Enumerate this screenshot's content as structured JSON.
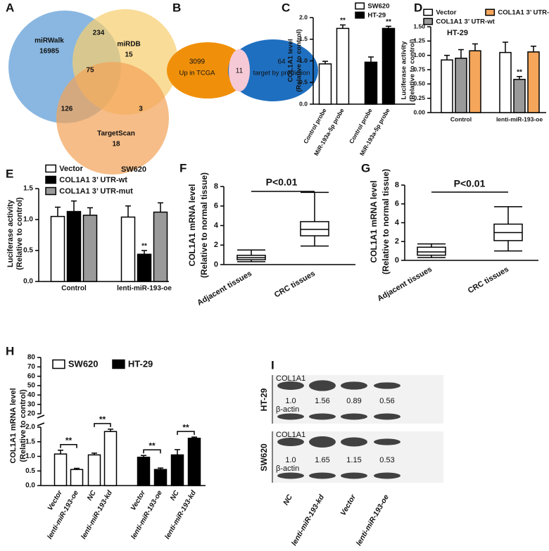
{
  "chart_data": [
    {
      "type": "venn",
      "panel": "A",
      "sets": [
        {
          "name": "miRWalk",
          "color": "#5b9bd5"
        },
        {
          "name": "miRDB",
          "color": "#f7cf70"
        },
        {
          "name": "TargetScan",
          "color": "#f2a45a"
        }
      ],
      "values": [
        16985,
        15,
        18,
        234,
        75,
        126,
        3
      ]
    },
    {
      "type": "venn",
      "panel": "B",
      "sets": [
        {
          "name": "Up in TCGA",
          "color": "#f0900a"
        },
        {
          "name": "target by prediction",
          "color": "#1f6fc0"
        }
      ],
      "values": [
        3099,
        64,
        11
      ]
    },
    {
      "type": "bar",
      "panel": "C",
      "ylabel": [
        "COL1A1 level",
        "(Relative to control)"
      ],
      "categories": [
        "Control probe",
        "MiR-193a-5p probe",
        "Control probe",
        "MiR-193a-5p probe"
      ],
      "series": [
        {
          "name": "SW620",
          "color": "#ffffff",
          "values": [
            0.93,
            1.75,
            null,
            null
          ],
          "errors": [
            0.06,
            0.08,
            null,
            null
          ],
          "significance": [
            null,
            "**",
            null,
            null
          ]
        },
        {
          "name": "HT-29",
          "color": "#000000",
          "values": [
            null,
            null,
            0.97,
            1.75
          ],
          "errors": [
            null,
            null,
            0.12,
            0.05
          ],
          "significance": [
            null,
            null,
            null,
            "**"
          ]
        }
      ],
      "ylim": [
        0,
        2
      ],
      "yticks": [
        {
          "value": 0,
          "label": "0.0"
        },
        {
          "value": 0.5,
          "label": "0.5"
        },
        {
          "value": 1,
          "label": "1.0"
        },
        {
          "value": 1.5,
          "label": "1.5"
        },
        {
          "value": 2,
          "label": "2.0"
        }
      ]
    },
    {
      "type": "bar",
      "panel": "D",
      "title": "HT-29",
      "ylabel": [
        "Luciferase activity",
        "(Relative to control)"
      ],
      "categories": [
        "Control",
        "lenti-miR-193-oe"
      ],
      "series": [
        {
          "name": "Vector",
          "color": "#ffffff",
          "values": [
            0.92,
            1.05
          ],
          "errors": [
            0.08,
            0.18
          ],
          "significance": [
            null,
            null
          ]
        },
        {
          "name": "COL1A1 3’ UTR-wt",
          "color": "#9a9a9a",
          "values": [
            0.95,
            0.58
          ],
          "errors": [
            0.15,
            0.05
          ],
          "significance": [
            null,
            "**"
          ]
        },
        {
          "name": "COL1A1 3’ UTR-mut",
          "color": "#f5a65b",
          "values": [
            1.08,
            1.06
          ],
          "errors": [
            0.12,
            0.1
          ],
          "significance": [
            null,
            null
          ]
        }
      ],
      "ylim": [
        0,
        1.5
      ],
      "yticks": [
        {
          "value": 0,
          "label": "0.00"
        },
        {
          "value": 0.25,
          "label": "0.25"
        },
        {
          "value": 0.5,
          "label": "0.50"
        },
        {
          "value": 0.75,
          "label": "0.75"
        },
        {
          "value": 1,
          "label": "1.00"
        },
        {
          "value": 1.25,
          "label": "1.25"
        },
        {
          "value": 1.5,
          "label": "1.50"
        }
      ]
    },
    {
      "type": "bar",
      "panel": "E",
      "title": "SW620",
      "ylabel": [
        "Luciferase activity",
        "(Relative to control)"
      ],
      "categories": [
        "Control",
        "lenti-miR-193-oe"
      ],
      "series": [
        {
          "name": "Vector",
          "color": "#ffffff",
          "values": [
            1.05,
            1.04
          ],
          "errors": [
            0.15,
            0.18
          ],
          "significance": [
            null,
            null
          ]
        },
        {
          "name": "COL1A1 3’ UTR-wt",
          "color": "#000000",
          "values": [
            1.13,
            0.44
          ],
          "errors": [
            0.17,
            0.06
          ],
          "significance": [
            null,
            "**"
          ]
        },
        {
          "name": "COL1A1 3’ UTR-mut",
          "color": "#9a9a9a",
          "values": [
            1.07,
            1.12
          ],
          "errors": [
            0.12,
            0.15
          ],
          "significance": [
            null,
            null
          ]
        }
      ],
      "ylim": [
        0,
        1.5
      ],
      "yticks": [
        {
          "value": 0,
          "label": "0.0"
        },
        {
          "value": 0.5,
          "label": "0.5"
        },
        {
          "value": 1,
          "label": "1.0"
        },
        {
          "value": 1.5,
          "label": "1.5"
        }
      ]
    },
    {
      "type": "box",
      "panel": "F",
      "title": "P<0.01",
      "ylabel": [
        "COL1A1 mRNA level",
        "(Relative to normal tissue)"
      ],
      "categories": [
        "Adjacent tissues",
        "CRC tissues"
      ],
      "boxes": [
        {
          "min": 0.3,
          "q1": 0.5,
          "median": 0.7,
          "q3": 0.95,
          "max": 1.5
        },
        {
          "min": 1.9,
          "q1": 2.95,
          "median": 3.6,
          "q3": 4.4,
          "max": 7.4
        }
      ],
      "ylim": [
        0,
        8
      ],
      "yticks": [
        0,
        2,
        4,
        6,
        8
      ]
    },
    {
      "type": "box",
      "panel": "G",
      "title": "P<0.01",
      "ylabel": [
        "COL1A1 mRNA level",
        "(Relative to normal tissue)"
      ],
      "categories": [
        "Adjacent tissues",
        "CRC tissues"
      ],
      "boxes": [
        {
          "min": 0.3,
          "q1": 0.55,
          "median": 0.9,
          "q3": 1.4,
          "max": 1.75
        },
        {
          "min": 1.0,
          "q1": 2.1,
          "median": 2.95,
          "q3": 3.85,
          "max": 5.7
        }
      ],
      "ylim": [
        0,
        8
      ],
      "yticks": [
        0,
        2,
        4,
        6,
        8
      ]
    },
    {
      "type": "bar",
      "panel": "H",
      "ylabel": [
        "COL1A1 mRNA level",
        "(Relative to control)"
      ],
      "significance_style": "bracket",
      "categories": [
        "Vector",
        "lenti-miR-193-oe",
        "NC",
        "lenti-miR-193-kd",
        "Vector",
        "lenti-miR-193-oe",
        "NC",
        "lenti-miR-193-kd"
      ],
      "series": [
        {
          "name": "SW620",
          "color": "#ffffff",
          "values": [
            1.08,
            0.55,
            1.05,
            1.85,
            null,
            null,
            null,
            null
          ],
          "errors": [
            0.13,
            0.04,
            0.06,
            0.08,
            null,
            null,
            null,
            null
          ],
          "significance": [
            null,
            "**",
            null,
            "**",
            null,
            null,
            null,
            null
          ]
        },
        {
          "name": "HT-29",
          "color": "#000000",
          "values": [
            null,
            null,
            null,
            null,
            0.97,
            0.55,
            1.05,
            1.62
          ],
          "errors": [
            null,
            null,
            null,
            null,
            0.06,
            0.05,
            0.18,
            0.04
          ],
          "significance": [
            null,
            null,
            null,
            null,
            null,
            "**",
            null,
            "**"
          ]
        }
      ],
      "ylim": [
        0,
        2
      ],
      "yticks": [
        {
          "value": 0,
          "label": "0.0"
        },
        {
          "value": 0.5,
          "label": "0.5"
        },
        {
          "value": 1,
          "label": "1.0"
        },
        {
          "value": 1.5,
          "label": "1.5"
        },
        {
          "value": 2,
          "label": "2.0"
        }
      ],
      "ylim_upper": [
        20,
        80
      ],
      "yticks_upper": [
        20,
        30,
        40,
        50,
        60,
        70,
        80
      ]
    },
    {
      "type": "blot",
      "panel": "I",
      "lanes": [
        "NC",
        "lenti-miR-193-kd",
        "Vector",
        "lenti-miR-193-oe"
      ],
      "groups": [
        {
          "name": "HT-29",
          "rows": [
            "COL1A1",
            "β-actin"
          ],
          "ratios": [
            {
              "value": 1,
              "label": "1.0"
            },
            1.56,
            0.89,
            0.56
          ]
        },
        {
          "name": "SW620",
          "rows": [
            "COL1A1",
            "β-actin"
          ],
          "ratios": [
            {
              "value": 1,
              "label": "1.0"
            },
            1.65,
            1.15,
            0.53
          ]
        }
      ]
    }
  ]
}
